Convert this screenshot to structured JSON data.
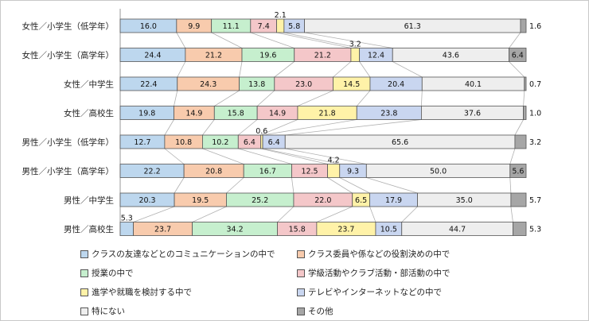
{
  "chart_data": {
    "type": "bar",
    "orientation": "horizontal",
    "stacked": "percent",
    "categories": [
      "女性／小学生（低学年）",
      "女性／小学生（高学年）",
      "女性／中学生",
      "女性／高校生",
      "男性／小学生（低学年）",
      "男性／小学生（高学年）",
      "男性／中学生",
      "男性／高校生"
    ],
    "series": [
      {
        "name": "クラスの友達などとのコミュニケーションの中で",
        "color": "#bdd7ee",
        "values": [
          16.0,
          24.4,
          22.4,
          19.8,
          12.7,
          22.2,
          20.3,
          5.3
        ]
      },
      {
        "name": "クラス委員や係などの役割決めの中で",
        "color": "#f8cbad",
        "values": [
          9.9,
          21.2,
          24.3,
          14.9,
          10.8,
          20.8,
          19.5,
          23.7
        ]
      },
      {
        "name": "授業の中で",
        "color": "#c6efce",
        "values": [
          11.1,
          19.6,
          13.8,
          15.8,
          10.2,
          16.7,
          25.2,
          34.2
        ]
      },
      {
        "name": "学級活動やクラブ活動・部活動の中で",
        "color": "#f4c7c9",
        "values": [
          7.4,
          21.2,
          23.0,
          14.9,
          6.4,
          12.5,
          22.0,
          15.8
        ]
      },
      {
        "name": "進学や就職を検討する中で",
        "color": "#fff2a8",
        "values": [
          2.1,
          3.2,
          14.5,
          21.8,
          0.6,
          4.2,
          6.5,
          23.7
        ]
      },
      {
        "name": "テレビやインターネットなどの中で",
        "color": "#c9d6f0",
        "values": [
          5.8,
          12.4,
          20.4,
          23.8,
          6.4,
          9.3,
          17.9,
          10.5
        ]
      },
      {
        "name": "特にない",
        "color": "#eeeeee",
        "values": [
          61.3,
          43.6,
          40.1,
          37.6,
          65.6,
          50.0,
          35.0,
          44.7
        ]
      },
      {
        "name": "その他",
        "color": "#a6a6a6",
        "values": [
          1.6,
          6.4,
          0.7,
          1.0,
          3.2,
          5.6,
          5.7,
          5.3
        ]
      }
    ],
    "legend_position": "bottom",
    "series_lines": true,
    "grid": false
  }
}
